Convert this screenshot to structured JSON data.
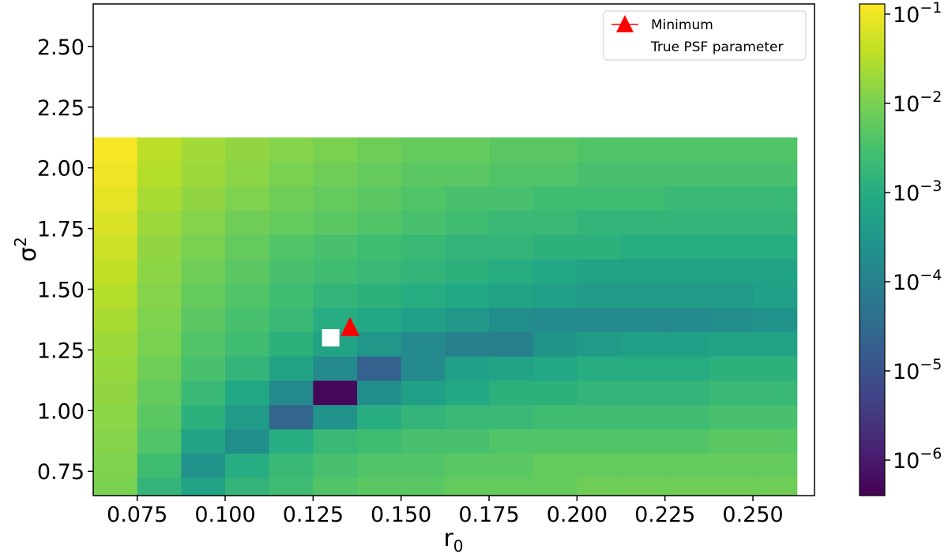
{
  "chart_data": {
    "type": "heatmap",
    "title": "",
    "xlabel_base": "r",
    "xlabel_sub": "0",
    "ylabel_base": "σ",
    "ylabel_sup": "2",
    "x_start": 0.0625,
    "x_step": 0.0125,
    "y_start": 0.625,
    "y_step": 0.1,
    "xlim": [
      0.0625,
      0.2675
    ],
    "ylim": [
      0.65,
      2.675
    ],
    "xticks": [
      0.075,
      0.1,
      0.125,
      0.15,
      0.175,
      0.2,
      0.225,
      0.25
    ],
    "xtick_labels": [
      "0.075",
      "0.100",
      "0.125",
      "0.150",
      "0.175",
      "0.200",
      "0.225",
      "0.250"
    ],
    "yticks": [
      0.75,
      1.0,
      1.25,
      1.5,
      1.75,
      2.0,
      2.25,
      2.5
    ],
    "ytick_labels": [
      "0.75",
      "1.00",
      "1.25",
      "1.50",
      "1.75",
      "2.00",
      "2.25",
      "2.50"
    ],
    "colormap": "viridis",
    "color_scale": "log",
    "clim": [
      4e-07,
      0.13
    ],
    "colorbar_ticks": [
      {
        "base": "10",
        "exp": "−1",
        "value": 0.1
      },
      {
        "base": "10",
        "exp": "−2",
        "value": 0.01
      },
      {
        "base": "10",
        "exp": "−3",
        "value": 0.001
      },
      {
        "base": "10",
        "exp": "−4",
        "value": 0.0001
      },
      {
        "base": "10",
        "exp": "−5",
        "value": 1e-05
      },
      {
        "base": "10",
        "exp": "−6",
        "value": 1e-06
      }
    ],
    "grid_log10_rows_bottom_to_top": [
      [
        -2.0,
        -2.8,
        -3.2,
        -2.8,
        -2.6,
        -2.4,
        -2.3,
        -2.3,
        -2.2,
        -2.2,
        -2.2,
        -2.1,
        -2.1,
        -2.1,
        -2.1,
        -2.1
      ],
      [
        -1.95,
        -2.6,
        -3.6,
        -3.0,
        -2.7,
        -2.5,
        -2.4,
        -2.4,
        -2.3,
        -2.3,
        -2.2,
        -2.2,
        -2.2,
        -2.2,
        -2.2,
        -2.2
      ],
      [
        -1.9,
        -2.4,
        -3.2,
        -3.7,
        -3.0,
        -2.7,
        -2.6,
        -2.5,
        -2.5,
        -2.4,
        -2.4,
        -2.4,
        -2.4,
        -2.4,
        -2.3,
        -2.3
      ],
      [
        -1.85,
        -2.3,
        -2.9,
        -3.4,
        -4.6,
        -3.6,
        -3.0,
        -2.8,
        -2.7,
        -2.7,
        -2.6,
        -2.6,
        -2.6,
        -2.6,
        -2.5,
        -2.5
      ],
      [
        -1.8,
        -2.2,
        -2.7,
        -3.1,
        -3.8,
        -6.3,
        -3.7,
        -3.3,
        -3.1,
        -2.9,
        -2.9,
        -2.8,
        -2.8,
        -2.8,
        -2.7,
        -2.7
      ],
      [
        -1.75,
        -2.1,
        -2.5,
        -2.8,
        -3.2,
        -3.8,
        -4.7,
        -3.8,
        -3.3,
        -3.2,
        -3.1,
        -3.0,
        -3.0,
        -3.0,
        -2.9,
        -2.9
      ],
      [
        -1.7,
        -2.0,
        -2.4,
        -2.6,
        -2.9,
        -3.2,
        -3.5,
        -3.8,
        -4.0,
        -4.0,
        -3.6,
        -3.4,
        -3.3,
        -3.3,
        -3.2,
        -3.2
      ],
      [
        -1.6,
        -1.95,
        -2.3,
        -2.5,
        -2.7,
        -3.0,
        -3.1,
        -3.3,
        -3.5,
        -3.7,
        -3.8,
        -3.8,
        -3.8,
        -3.8,
        -3.7,
        -3.6
      ],
      [
        -1.5,
        -1.9,
        -2.2,
        -2.4,
        -2.6,
        -2.8,
        -2.9,
        -3.0,
        -3.1,
        -3.2,
        -3.3,
        -3.4,
        -3.4,
        -3.4,
        -3.4,
        -3.3
      ],
      [
        -1.4,
        -1.85,
        -2.1,
        -2.3,
        -2.5,
        -2.6,
        -2.7,
        -2.8,
        -2.9,
        -3.0,
        -3.1,
        -3.2,
        -3.2,
        -3.2,
        -3.2,
        -3.2
      ],
      [
        -1.3,
        -1.8,
        -2.0,
        -2.2,
        -2.4,
        -2.5,
        -2.6,
        -2.7,
        -2.8,
        -2.8,
        -2.9,
        -2.9,
        -3.0,
        -3.0,
        -3.0,
        -3.0
      ],
      [
        -1.2,
        -1.7,
        -1.9,
        -2.1,
        -2.2,
        -2.3,
        -2.4,
        -2.5,
        -2.6,
        -2.7,
        -2.7,
        -2.8,
        -2.8,
        -2.8,
        -2.8,
        -2.8
      ],
      [
        -1.1,
        -1.6,
        -1.8,
        -1.95,
        -2.1,
        -2.2,
        -2.3,
        -2.4,
        -2.5,
        -2.5,
        -2.6,
        -2.6,
        -2.6,
        -2.7,
        -2.7,
        -2.7
      ],
      [
        -1.0,
        -1.5,
        -1.7,
        -1.85,
        -2.0,
        -2.1,
        -2.2,
        -2.3,
        -2.3,
        -2.4,
        -2.4,
        -2.5,
        -2.5,
        -2.5,
        -2.5,
        -2.5
      ],
      [
        -0.95,
        -1.45,
        -1.65,
        -1.8,
        -1.9,
        -2.0,
        -2.1,
        -2.2,
        -2.2,
        -2.3,
        -2.3,
        -2.4,
        -2.4,
        -2.4,
        -2.4,
        -2.4
      ]
    ],
    "markers": [
      {
        "label": "Minimum",
        "x": 0.1355,
        "y": 1.34,
        "shape": "triangle",
        "color": "#ff0000"
      },
      {
        "label": "True PSF parameter",
        "x": 0.13,
        "y": 1.3,
        "shape": "square",
        "color": "#ffffff"
      }
    ],
    "legend_position": "upper right"
  }
}
